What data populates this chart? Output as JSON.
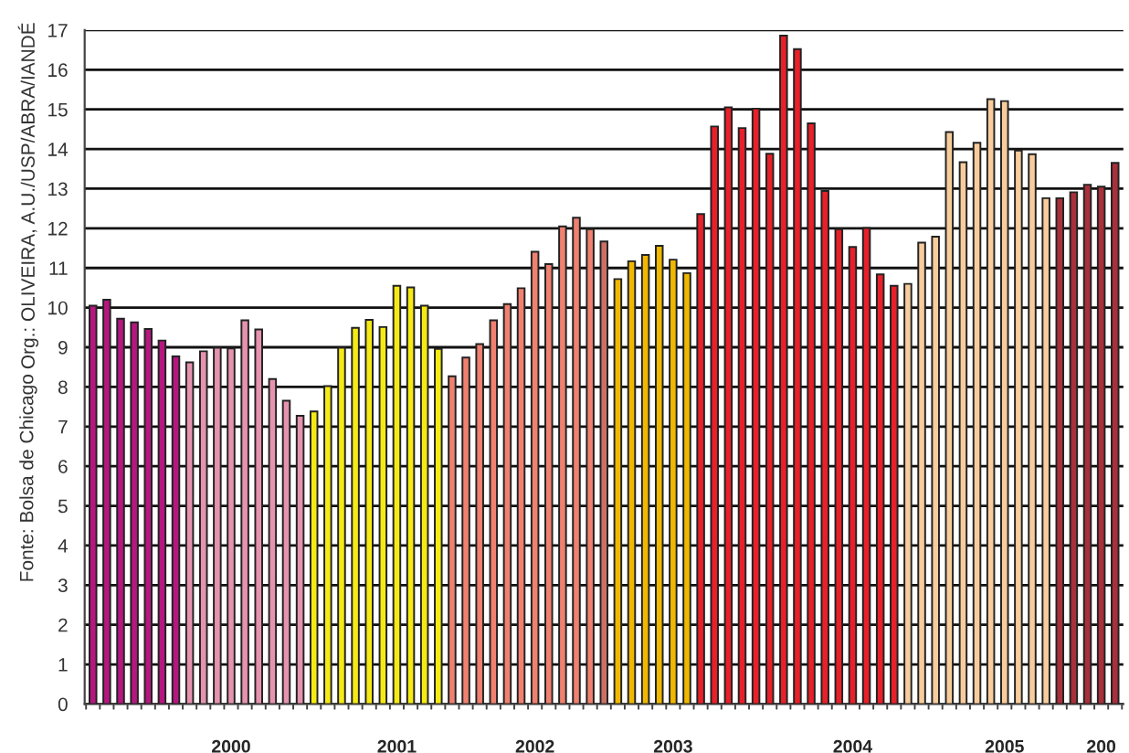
{
  "chart_data": {
    "type": "bar",
    "categories": [
      null,
      null,
      null,
      null,
      null,
      null,
      null,
      null,
      null,
      null,
      "2000",
      null,
      null,
      null,
      null,
      null,
      null,
      null,
      null,
      null,
      null,
      null,
      "2001",
      null,
      null,
      null,
      null,
      null,
      null,
      null,
      null,
      null,
      "2002",
      null,
      null,
      null,
      null,
      null,
      null,
      null,
      null,
      null,
      "2003",
      null,
      null,
      null,
      null,
      null,
      null,
      null,
      null,
      null,
      null,
      null,
      null,
      "2004",
      null,
      null,
      null,
      null,
      null,
      null,
      null,
      null,
      null,
      null,
      "2005",
      null,
      null,
      null,
      null,
      null,
      null,
      "200",
      null
    ],
    "values": [
      10.05,
      10.2,
      9.72,
      9.63,
      9.46,
      9.17,
      8.77,
      8.62,
      8.9,
      8.99,
      8.97,
      9.68,
      9.45,
      8.2,
      7.65,
      7.27,
      7.38,
      8.02,
      8.99,
      9.49,
      9.69,
      9.51,
      10.55,
      10.51,
      10.05,
      8.96,
      8.27,
      8.74,
      9.08,
      9.68,
      10.09,
      10.49,
      11.41,
      11.1,
      12.05,
      12.27,
      11.98,
      11.67,
      10.72,
      11.17,
      11.33,
      11.56,
      11.21,
      10.87,
      12.36,
      14.57,
      15.05,
      14.53,
      15.02,
      13.88,
      16.86,
      16.52,
      14.65,
      12.94,
      11.98,
      11.53,
      12.01,
      10.84,
      10.55,
      10.6,
      11.64,
      11.79,
      14.43,
      13.67,
      14.16,
      15.26,
      15.21,
      13.96,
      13.87,
      12.76,
      12.76,
      12.91,
      13.1,
      13.05,
      13.65
    ],
    "colors": [
      "#b5177f",
      "#b5177f",
      "#b5177f",
      "#b5177f",
      "#b5177f",
      "#b5177f",
      "#b5177f",
      "#e693b0",
      "#e693b0",
      "#e693b0",
      "#e693b0",
      "#e693b0",
      "#e693b0",
      "#e693b0",
      "#e693b0",
      "#e693b0",
      "#f5ea14",
      "#f5ea14",
      "#f5ea14",
      "#f5ea14",
      "#f5ea14",
      "#f5ea14",
      "#f5ea14",
      "#f5ea14",
      "#f5ea14",
      "#f5ea14",
      "#f08070",
      "#f08070",
      "#f08070",
      "#f08070",
      "#f08070",
      "#f08070",
      "#f08070",
      "#f08070",
      "#f08070",
      "#f08070",
      "#f08070",
      "#cc7066",
      "#f0b800",
      "#f0b800",
      "#f0b800",
      "#f0b800",
      "#f0b800",
      "#f0b800",
      "#e8202a",
      "#e8202a",
      "#e8202a",
      "#e8202a",
      "#e8202a",
      "#e8202a",
      "#e8202a",
      "#e8202a",
      "#e8202a",
      "#e8202a",
      "#e8202a",
      "#e8202a",
      "#e8202a",
      "#e8202a",
      "#e8202a",
      "#f8cc9c",
      "#f8cc9c",
      "#f8cc9c",
      "#f8cc9c",
      "#f8cc9c",
      "#f8cc9c",
      "#f8cc9c",
      "#f8cc9c",
      "#f8cc9c",
      "#f8cc9c",
      "#f8cc9c",
      "#a8303a",
      "#a8303a",
      "#a8303a",
      "#a8303a",
      "#a8303a"
    ],
    "ylim": [
      0,
      17
    ],
    "yticks": [
      0,
      1,
      2,
      3,
      4,
      5,
      6,
      7,
      8,
      9,
      10,
      11,
      12,
      13,
      14,
      15,
      16,
      17
    ],
    "grid": "y",
    "annotations": [
      "Fonte: Bolsa de Chicago",
      "Org.: OLIVEIRA, A.U./USP/ABRA/IANDÉ"
    ]
  }
}
